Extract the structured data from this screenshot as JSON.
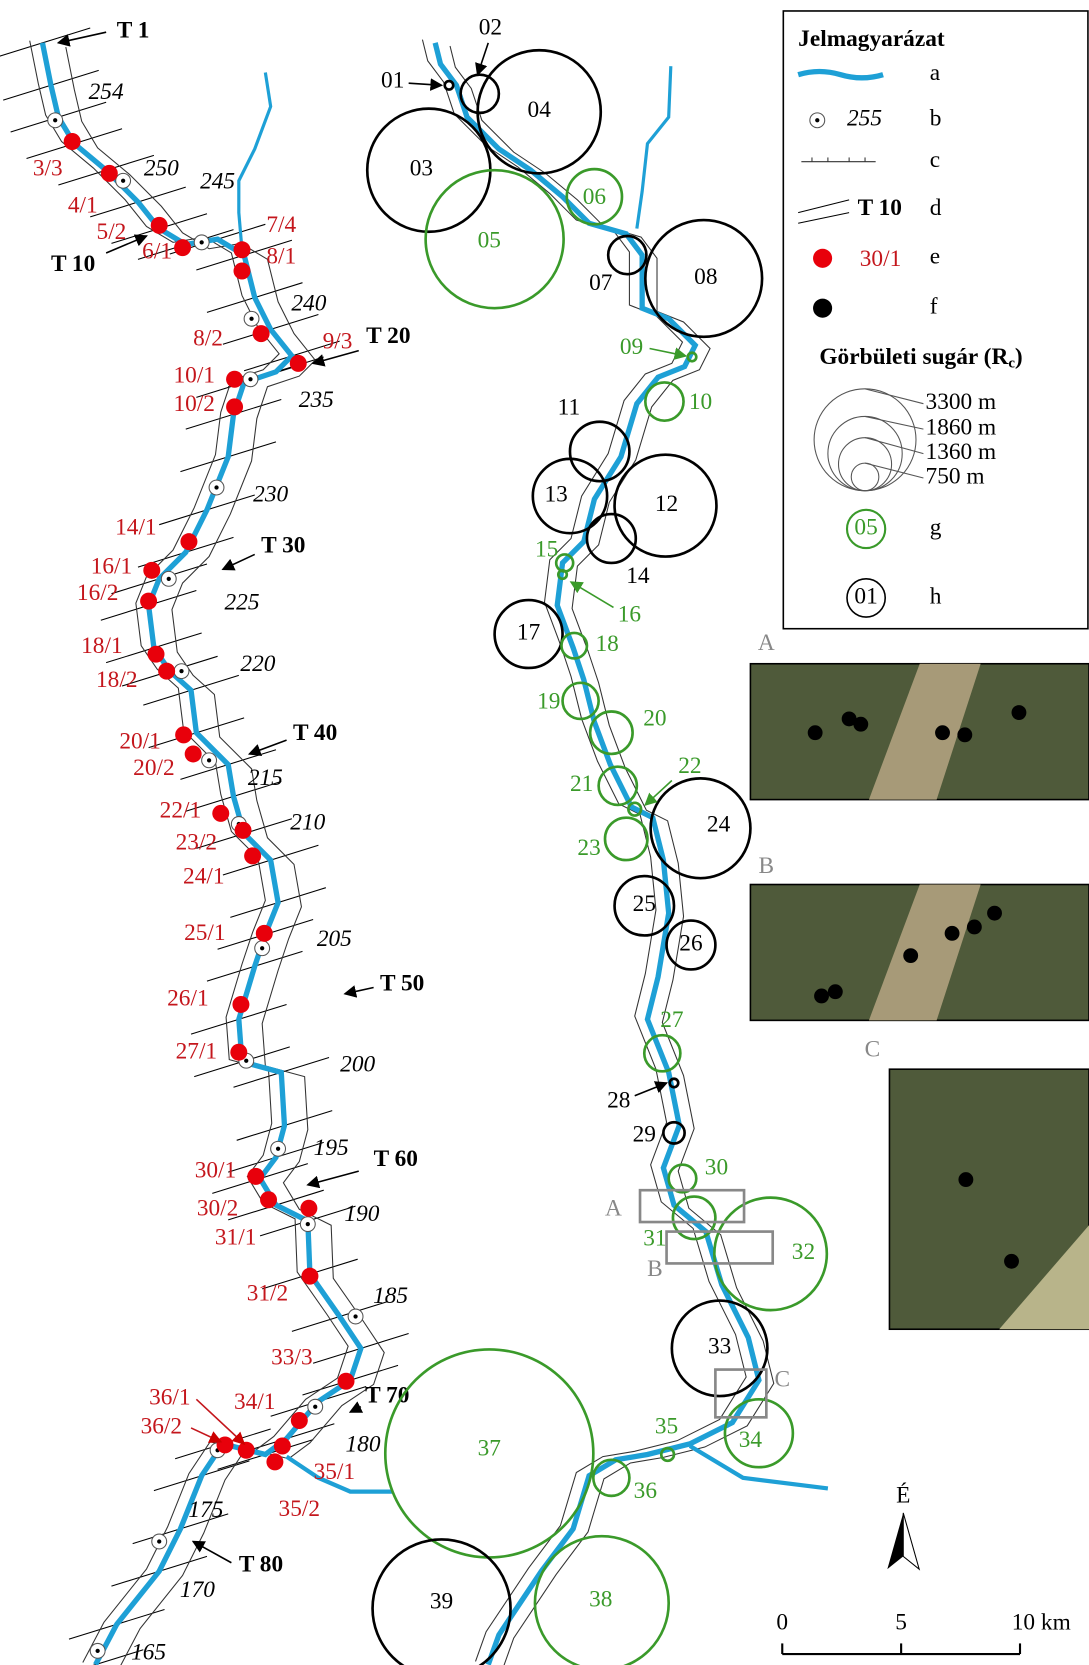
{
  "left_river": {
    "sections": [
      "T 1",
      "T 10",
      "T 20",
      "T 30",
      "T 40",
      "T 50",
      "T 60",
      "T 70",
      "T 80"
    ],
    "km_labels": [
      "254",
      "250",
      "245",
      "240",
      "235",
      "230",
      "225",
      "220",
      "215",
      "210",
      "205",
      "200",
      "195",
      "190",
      "185",
      "180",
      "175",
      "170",
      "165"
    ],
    "points": [
      "3/3",
      "4/1",
      "5/2",
      "6/1",
      "7/4",
      "8/1",
      "8/2",
      "9/3",
      "10/1",
      "10/2",
      "14/1",
      "16/1",
      "16/2",
      "18/1",
      "18/2",
      "20/1",
      "20/2",
      "22/1",
      "23/2",
      "24/1",
      "25/1",
      "26/1",
      "27/1",
      "30/1",
      "30/2",
      "31/1",
      "31/2",
      "33/3",
      "34/1",
      "35/1",
      "35/2",
      "36/1",
      "36/2"
    ]
  },
  "right_river": {
    "bends": [
      {
        "id": "01",
        "color": "#000000"
      },
      {
        "id": "02",
        "color": "#000000"
      },
      {
        "id": "03",
        "color": "#000000"
      },
      {
        "id": "04",
        "color": "#000000"
      },
      {
        "id": "05",
        "color": "#3a9a2a"
      },
      {
        "id": "06",
        "color": "#3a9a2a"
      },
      {
        "id": "07",
        "color": "#000000"
      },
      {
        "id": "08",
        "color": "#000000"
      },
      {
        "id": "09",
        "color": "#3a9a2a"
      },
      {
        "id": "10",
        "color": "#3a9a2a"
      },
      {
        "id": "11",
        "color": "#000000"
      },
      {
        "id": "12",
        "color": "#000000"
      },
      {
        "id": "13",
        "color": "#000000"
      },
      {
        "id": "14",
        "color": "#000000"
      },
      {
        "id": "15",
        "color": "#3a9a2a"
      },
      {
        "id": "16",
        "color": "#3a9a2a"
      },
      {
        "id": "17",
        "color": "#000000"
      },
      {
        "id": "18",
        "color": "#3a9a2a"
      },
      {
        "id": "19",
        "color": "#3a9a2a"
      },
      {
        "id": "20",
        "color": "#3a9a2a"
      },
      {
        "id": "21",
        "color": "#3a9a2a"
      },
      {
        "id": "22",
        "color": "#3a9a2a"
      },
      {
        "id": "23",
        "color": "#3a9a2a"
      },
      {
        "id": "24",
        "color": "#000000"
      },
      {
        "id": "25",
        "color": "#000000"
      },
      {
        "id": "26",
        "color": "#000000"
      },
      {
        "id": "27",
        "color": "#3a9a2a"
      },
      {
        "id": "28",
        "color": "#000000"
      },
      {
        "id": "29",
        "color": "#000000"
      },
      {
        "id": "30",
        "color": "#3a9a2a"
      },
      {
        "id": "31",
        "color": "#3a9a2a"
      },
      {
        "id": "32",
        "color": "#3a9a2a"
      },
      {
        "id": "33",
        "color": "#000000"
      },
      {
        "id": "34",
        "color": "#3a9a2a"
      },
      {
        "id": "35",
        "color": "#3a9a2a"
      },
      {
        "id": "36",
        "color": "#3a9a2a"
      },
      {
        "id": "37",
        "color": "#3a9a2a"
      },
      {
        "id": "38",
        "color": "#3a9a2a"
      },
      {
        "id": "39",
        "color": "#000000"
      }
    ],
    "map_boxes": [
      "A",
      "B",
      "C"
    ]
  },
  "legend": {
    "title": "Jelmagyarázat",
    "items": [
      {
        "letter": "a"
      },
      {
        "label": "255",
        "letter": "b"
      },
      {
        "letter": "c"
      },
      {
        "label": "T 10",
        "letter": "d"
      },
      {
        "label": "30/1",
        "letter": "e"
      },
      {
        "letter": "f"
      },
      {
        "label": "05",
        "letter": "g"
      },
      {
        "label": "01",
        "letter": "h"
      }
    ],
    "radius_title": {
      "text": "Görbületi sugár (R",
      "sub": "c",
      "end": ")"
    },
    "radii": [
      "3300 m",
      "1860 m",
      "1360 m",
      "750 m"
    ]
  },
  "insets": [
    "A",
    "B",
    "C"
  ],
  "scale": [
    "0",
    "5",
    "10 km"
  ],
  "north": "É"
}
